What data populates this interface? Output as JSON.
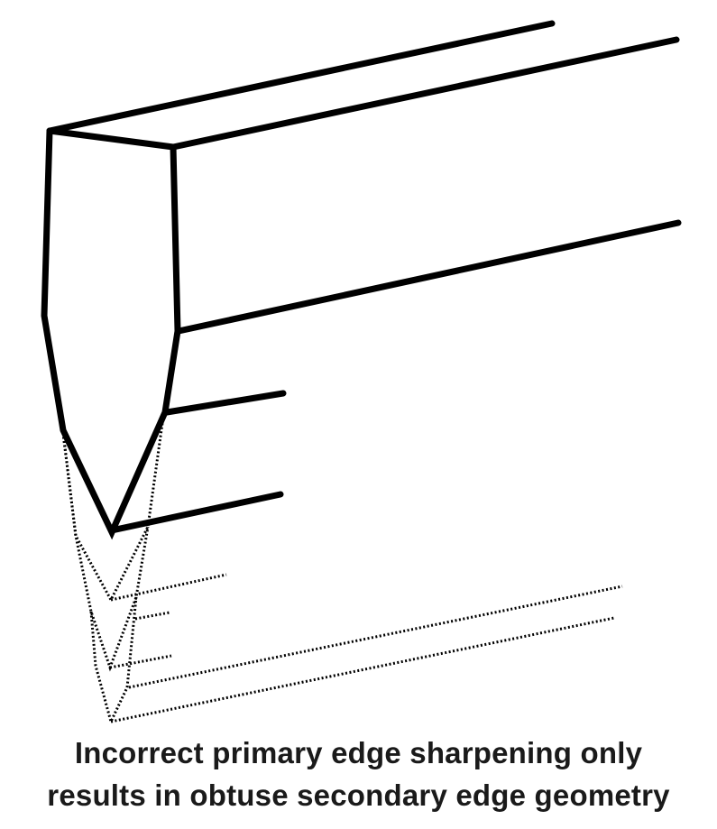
{
  "caption": {
    "line1": "Incorrect primary edge sharpening only",
    "line2": "results in obtuse secondary edge geometry"
  },
  "colors": {
    "background": "#ffffff",
    "stroke": "#000000",
    "text": "#1a1a1a"
  }
}
